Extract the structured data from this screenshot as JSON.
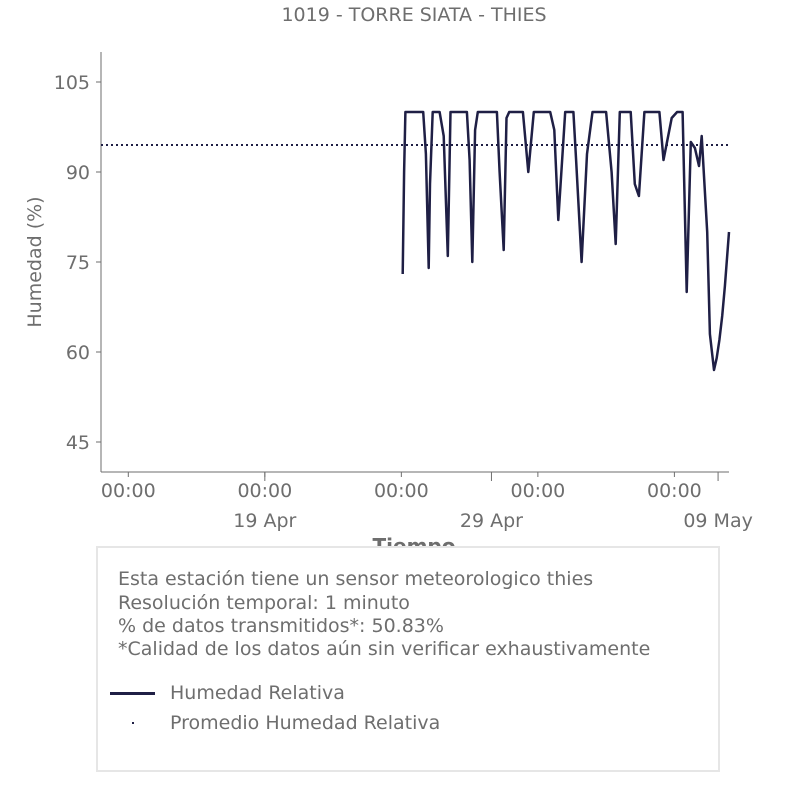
{
  "chart_data": {
    "type": "line",
    "title": "1019 - TORRE SIATA - THIES",
    "xlabel": "Tiempo",
    "ylabel": "Humedad (%)",
    "ylim": [
      40,
      110
    ],
    "yticks": [
      45,
      60,
      75,
      90,
      105
    ],
    "x_range_days": [
      0,
      23
    ],
    "x_ticks": [
      {
        "pos": 1,
        "label": "00:00"
      },
      {
        "pos": 6,
        "label": "00:00"
      },
      {
        "pos": 11,
        "label": "00:00"
      },
      {
        "pos": 16,
        "label": "00:00"
      },
      {
        "pos": 21,
        "label": "00:00"
      }
    ],
    "x_major_ticks": [
      {
        "pos": 6,
        "label": "19 Apr"
      },
      {
        "pos": 14.3,
        "label": "29 Apr"
      },
      {
        "pos": 22.6,
        "label": "09 May"
      }
    ],
    "series": [
      {
        "name": "Humedad Relativa",
        "style": "solid",
        "color": "#1f1f45",
        "x": [
          11.05,
          11.1,
          11.15,
          11.3,
          11.6,
          11.8,
          11.9,
          12.0,
          12.05,
          12.15,
          12.4,
          12.55,
          12.7,
          12.8,
          12.9,
          13.2,
          13.4,
          13.5,
          13.6,
          13.7,
          13.8,
          13.95,
          14.3,
          14.5,
          14.6,
          14.75,
          14.85,
          14.95,
          15.2,
          15.45,
          15.65,
          15.85,
          16.0,
          16.2,
          16.45,
          16.6,
          16.75,
          17.0,
          17.2,
          17.3,
          17.4,
          17.6,
          17.8,
          18.0,
          18.25,
          18.5,
          18.7,
          18.85,
          19.0,
          19.2,
          19.4,
          19.55,
          19.7,
          19.9,
          20.1,
          20.3,
          20.45,
          20.6,
          20.9,
          21.1,
          21.3,
          21.45,
          21.6,
          21.75,
          21.9,
          22.0,
          22.2,
          22.3,
          22.45,
          22.55,
          22.65,
          22.75,
          22.85,
          23.0
        ],
        "values": [
          73,
          90,
          100,
          100,
          100,
          100,
          93,
          74,
          88,
          100,
          100,
          96,
          76,
          100,
          100,
          100,
          100,
          92,
          75,
          97,
          100,
          100,
          100,
          100,
          90,
          77,
          99,
          100,
          100,
          100,
          90,
          100,
          100,
          100,
          100,
          97,
          82,
          100,
          100,
          100,
          92,
          75,
          93,
          100,
          100,
          100,
          90,
          78,
          100,
          100,
          100,
          88,
          86,
          100,
          100,
          100,
          100,
          92,
          99,
          100,
          100,
          70,
          95,
          94,
          91,
          96,
          80,
          63,
          57,
          59,
          62,
          66,
          71,
          80
        ]
      },
      {
        "name": "Promedio Humedad Relativa",
        "style": "dotted",
        "color": "#1f1f45",
        "values": [
          94.5
        ]
      }
    ],
    "legend_placement": "bottom-left inside info box"
  },
  "info": {
    "lines": [
      "Esta estación tiene un sensor meteorologico thies",
      "Resolución temporal: 1 minuto",
      "% de datos transmitidos*: 50.83%",
      "*Calidad de los datos aún sin verificar exhaustivamente"
    ]
  }
}
